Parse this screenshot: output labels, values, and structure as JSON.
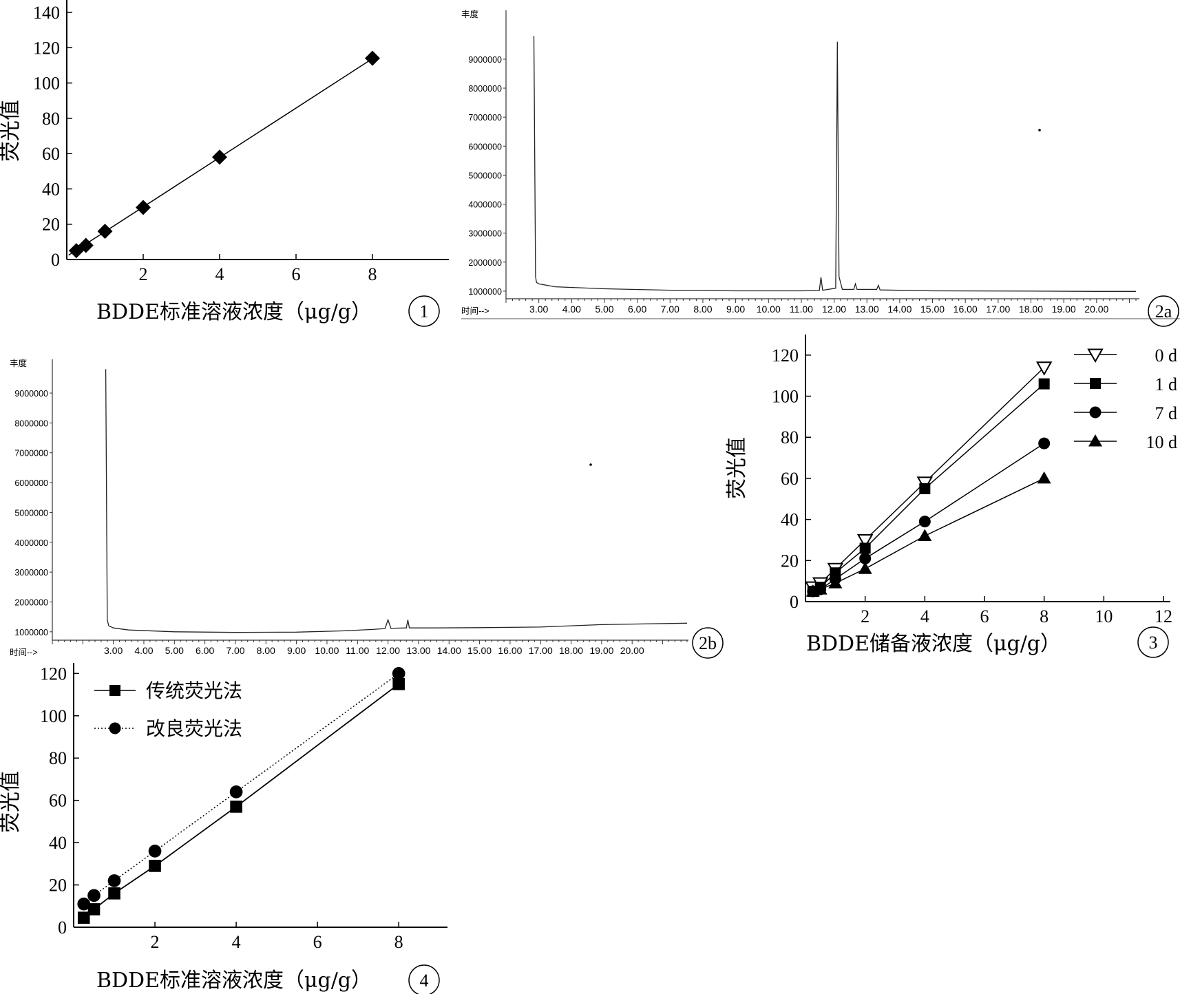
{
  "chart_data": [
    {
      "id": "p1",
      "type": "scatter",
      "panel_label": "1",
      "xlabel": "BDDE标准溶液浓度（μg/g）",
      "ylabel": "荧光值",
      "xlim": [
        0,
        10
      ],
      "ylim": [
        0,
        140
      ],
      "xticks": [
        2,
        4,
        6,
        8
      ],
      "yticks": [
        0,
        20,
        40,
        60,
        80,
        100,
        120,
        140
      ],
      "series": [
        {
          "x": [
            0.25,
            0.5,
            1,
            2,
            4,
            8
          ],
          "y": [
            5,
            8,
            16,
            29.5,
            58,
            114
          ],
          "marker": "diamond",
          "line": "solid"
        }
      ],
      "fit_line": {
        "x": [
          0.05,
          8.05
        ],
        "y": [
          2.5,
          114.5
        ]
      }
    },
    {
      "id": "p2a",
      "type": "line",
      "panel_label": "2a",
      "ylabel": "丰度",
      "xlabel": "时间-->",
      "yticks": [
        "1000000",
        "2000000",
        "3000000",
        "4000000",
        "5000000",
        "6000000",
        "7000000",
        "8000000",
        "9000000"
      ],
      "xticks": [
        "3.00",
        "4.00",
        "5.00",
        "6.00",
        "7.00",
        "8.00",
        "9.00",
        "10.00",
        "11.00",
        "12.00",
        "13.00",
        "14.00",
        "15.00",
        "16.00",
        "17.00",
        "18.00",
        "19.00",
        "20.00"
      ],
      "xlim": [
        2.0,
        21.2
      ],
      "ylim": [
        950000,
        9900000
      ],
      "series": [
        {
          "x": [
            2.85,
            2.9,
            2.93,
            3.0,
            3.5,
            5,
            7,
            9,
            11,
            11.55,
            11.6,
            11.65,
            12.05,
            12.1,
            12.15,
            12.25,
            12.6,
            12.65,
            12.7,
            13.3,
            13.35,
            13.4,
            15,
            18,
            20,
            21.2
          ],
          "y": [
            9800000,
            1500000,
            1300000,
            1250000,
            1150000,
            1080000,
            1030000,
            1010000,
            1010000,
            1020000,
            1480000,
            1030000,
            1100000,
            9600000,
            1500000,
            1060000,
            1060000,
            1250000,
            1060000,
            1060000,
            1200000,
            1040000,
            1010000,
            1000000,
            990000,
            990000
          ]
        }
      ]
    },
    {
      "id": "p2b",
      "type": "line",
      "panel_label": "2b",
      "ylabel": "丰度",
      "xlabel": "时间-->",
      "yticks": [
        "1000000",
        "2000000",
        "3000000",
        "4000000",
        "5000000",
        "6000000",
        "7000000",
        "8000000",
        "9000000"
      ],
      "xticks": [
        "3.00",
        "4.00",
        "5.00",
        "6.00",
        "7.00",
        "8.00",
        "9.00",
        "10.00",
        "11.00",
        "12.00",
        "13.00",
        "14.00",
        "15.00",
        "16.00",
        "17.00",
        "18.00",
        "19.00",
        "20.00"
      ],
      "xlim": [
        1.0,
        21.8
      ],
      "ylim": [
        950000,
        9900000
      ],
      "series": [
        {
          "x": [
            2.75,
            2.8,
            2.85,
            3.0,
            3.5,
            5,
            7,
            9,
            10.5,
            11.5,
            11.9,
            12.0,
            12.1,
            12.2,
            12.6,
            12.65,
            12.7,
            13.5,
            15,
            17,
            19,
            21.8
          ],
          "y": [
            9800000,
            1400000,
            1200000,
            1130000,
            1060000,
            1000000,
            980000,
            990000,
            1030000,
            1080000,
            1110000,
            1400000,
            1110000,
            1120000,
            1130000,
            1400000,
            1130000,
            1130000,
            1140000,
            1160000,
            1240000,
            1290000
          ]
        }
      ]
    },
    {
      "id": "p3",
      "type": "line",
      "panel_label": "3",
      "xlabel": "BDDE储备液浓度（μg/g）",
      "ylabel": "荧光值",
      "xlim": [
        0,
        12
      ],
      "ylim": [
        0,
        130
      ],
      "xticks": [
        2,
        4,
        6,
        8,
        10,
        12
      ],
      "yticks": [
        0,
        20,
        40,
        60,
        80,
        100,
        120
      ],
      "legend_position": "top-right",
      "series": [
        {
          "name": "0 d",
          "marker": "triangle-down-open",
          "x": [
            0.25,
            0.5,
            1,
            2,
            4,
            8
          ],
          "y": [
            7,
            9,
            16,
            30,
            58,
            114
          ]
        },
        {
          "name": "1 d",
          "marker": "square",
          "x": [
            0.25,
            0.5,
            1,
            2,
            4,
            8
          ],
          "y": [
            5,
            7,
            14,
            26,
            55,
            106
          ]
        },
        {
          "name": "7 d",
          "marker": "circle",
          "x": [
            0.25,
            0.5,
            1,
            2,
            4,
            8
          ],
          "y": [
            5,
            6,
            11,
            21,
            39,
            77
          ]
        },
        {
          "name": "10 d",
          "marker": "triangle-up",
          "x": [
            0.25,
            0.5,
            1,
            2,
            4,
            8
          ],
          "y": [
            5,
            6,
            9,
            16,
            32,
            60
          ]
        }
      ]
    },
    {
      "id": "p4",
      "type": "line",
      "panel_label": "4",
      "xlabel": "BDDE标准溶液浓度（μg/g）",
      "ylabel": "荧光值",
      "xlim": [
        0,
        9.2
      ],
      "ylim": [
        0,
        125
      ],
      "xticks": [
        2,
        4,
        6,
        8
      ],
      "yticks": [
        0,
        20,
        40,
        60,
        80,
        100,
        120
      ],
      "legend_position": "top-left",
      "series": [
        {
          "name": "传统荧光法",
          "marker": "square",
          "line": "solid",
          "x": [
            0.25,
            0.5,
            1,
            2,
            4,
            8
          ],
          "y": [
            4.5,
            8.5,
            16,
            29,
            57,
            115
          ]
        },
        {
          "name": "改良荧光法",
          "marker": "circle",
          "line": "dotted",
          "x": [
            0.25,
            0.5,
            1,
            2,
            4,
            8
          ],
          "y": [
            11,
            15,
            22,
            36,
            64,
            120
          ]
        }
      ]
    }
  ]
}
